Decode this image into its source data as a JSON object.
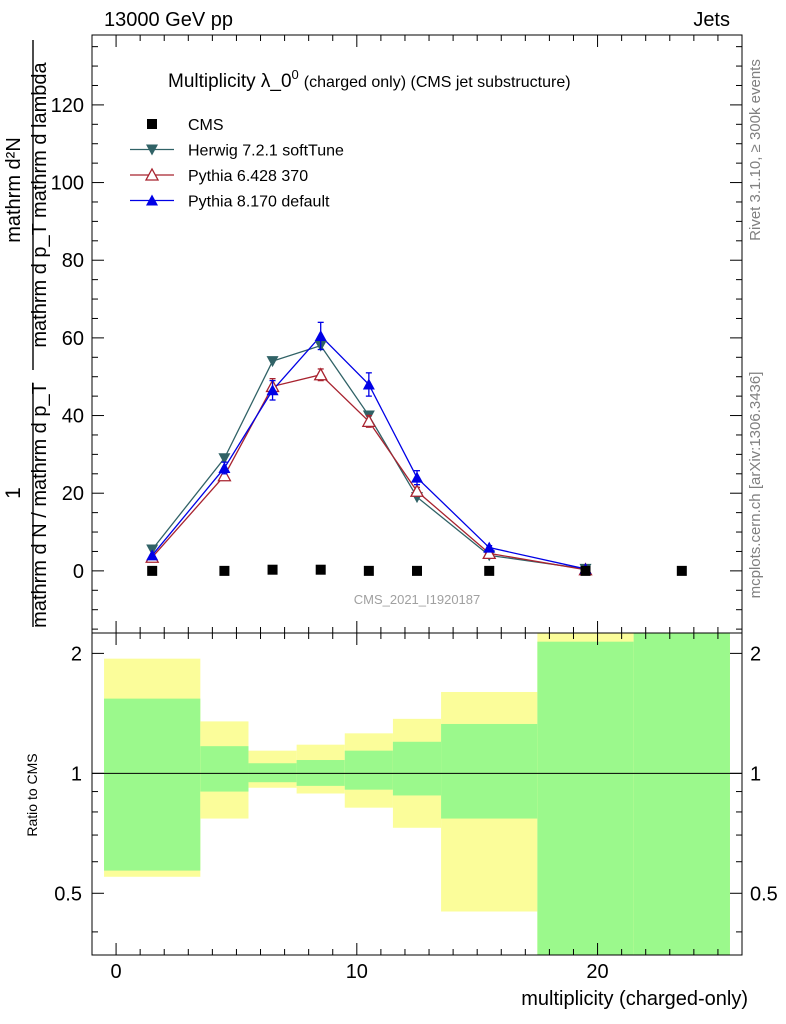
{
  "header": {
    "energy_label": "13000 GeV pp",
    "category_label": "Jets"
  },
  "side": {
    "rivet_label": "Rivet 3.1.10, ≥ 300k events",
    "mcplots_label": "mcplots.cern.ch [arXiv:1306.3436]"
  },
  "chart_data": [
    {
      "type": "scatter",
      "title": "Multiplicity λ_0",
      "title_superscript": "0",
      "subtitle": "(charged only) (CMS jet substructure)",
      "ylabel_numerator": "mathrm d²N",
      "ylabel_denominator": "mathrm d p_T mathrm d lambda",
      "ylabel_prefactor_numerator": "1",
      "ylabel_prefactor_denominator": "mathrm d N / mathrm d p_T",
      "analysis_label": "CMS_2021_I1920187",
      "xlim": [
        -1,
        26
      ],
      "ylim": [
        -16,
        138
      ],
      "yticks": [
        0,
        20,
        40,
        60,
        80,
        100,
        120
      ],
      "legend": {
        "position": "top-left"
      },
      "series": [
        {
          "name": "CMS",
          "marker": "square",
          "color": "#000000",
          "x": [
            1.5,
            4.5,
            6.5,
            8.5,
            10.5,
            12.5,
            15.5,
            19.5,
            23.5
          ],
          "y": [
            0,
            0,
            0.3,
            0.3,
            0,
            0,
            0,
            0,
            0
          ]
        },
        {
          "name": "Herwig 7.2.1 softTune",
          "marker": "triangle-down",
          "color": "#306266",
          "x": [
            1.5,
            4.5,
            6.5,
            8.5,
            10.5,
            12.5,
            15.5,
            19.5
          ],
          "y": [
            5.5,
            29,
            54,
            58,
            40,
            19,
            4,
            0.5
          ],
          "yerr": [
            0,
            0,
            0,
            0,
            0,
            0,
            0,
            0
          ]
        },
        {
          "name": "Pythia 6.428 370",
          "marker": "triangle-open",
          "color": "#a8232f",
          "x": [
            1.5,
            4.5,
            6.5,
            8.5,
            10.5,
            12.5,
            15.5,
            19.5
          ],
          "y": [
            3.5,
            24.5,
            47.5,
            50.5,
            38.5,
            20.5,
            4.5,
            0.3
          ],
          "yerr": [
            0,
            0,
            2,
            1.5,
            1.5,
            1,
            0,
            0
          ]
        },
        {
          "name": "Pythia 8.170 default",
          "marker": "triangle",
          "color": "#0000e6",
          "x": [
            1.5,
            4.5,
            6.5,
            8.5,
            10.5,
            12.5,
            15.5,
            19.5
          ],
          "y": [
            4,
            26.5,
            46.5,
            60.5,
            48,
            24,
            6,
            0.5
          ],
          "yerr": [
            0,
            1.5,
            2.5,
            3.5,
            3,
            1.8,
            0.5,
            0
          ]
        }
      ]
    },
    {
      "type": "area",
      "ylabel": "Ratio to CMS",
      "xlabel": "multiplicity (charged-only)",
      "xlim": [
        -1,
        26
      ],
      "ylim": [
        0.35,
        2.25
      ],
      "yticks": [
        0.5,
        1,
        2
      ],
      "xticks": [
        0,
        10,
        20
      ],
      "reference_line": 1,
      "bins": [
        {
          "lo": -0.5,
          "hi": 3.5,
          "stat_lo": 0.57,
          "stat_hi": 1.54,
          "tot_lo": 0.55,
          "tot_hi": 1.94
        },
        {
          "lo": 3.5,
          "hi": 5.5,
          "stat_lo": 0.9,
          "stat_hi": 1.17,
          "tot_lo": 0.77,
          "tot_hi": 1.35
        },
        {
          "lo": 5.5,
          "hi": 7.5,
          "stat_lo": 0.95,
          "stat_hi": 1.06,
          "tot_lo": 0.92,
          "tot_hi": 1.14
        },
        {
          "lo": 7.5,
          "hi": 9.5,
          "stat_lo": 0.93,
          "stat_hi": 1.08,
          "tot_lo": 0.89,
          "tot_hi": 1.18
        },
        {
          "lo": 9.5,
          "hi": 11.5,
          "stat_lo": 0.91,
          "stat_hi": 1.14,
          "tot_lo": 0.82,
          "tot_hi": 1.26
        },
        {
          "lo": 11.5,
          "hi": 13.5,
          "stat_lo": 0.88,
          "stat_hi": 1.2,
          "tot_lo": 0.73,
          "tot_hi": 1.37
        },
        {
          "lo": 13.5,
          "hi": 17.5,
          "stat_lo": 0.77,
          "stat_hi": 1.33,
          "tot_lo": 0.45,
          "tot_hi": 1.6
        },
        {
          "lo": 17.5,
          "hi": 21.5,
          "stat_lo": 0.35,
          "stat_hi": 2.14,
          "tot_lo": 0.35,
          "tot_hi": 2.25
        },
        {
          "lo": 21.5,
          "hi": 25.5,
          "stat_lo": 0.35,
          "stat_hi": 2.25,
          "tot_lo": 0.35,
          "tot_hi": 2.25
        }
      ]
    }
  ],
  "colors": {
    "stat_band": "#9bf98c",
    "total_band": "#fbfd9a",
    "axis": "#000000",
    "analysis_label": "#a0a0a0",
    "side_label": "#808080"
  }
}
